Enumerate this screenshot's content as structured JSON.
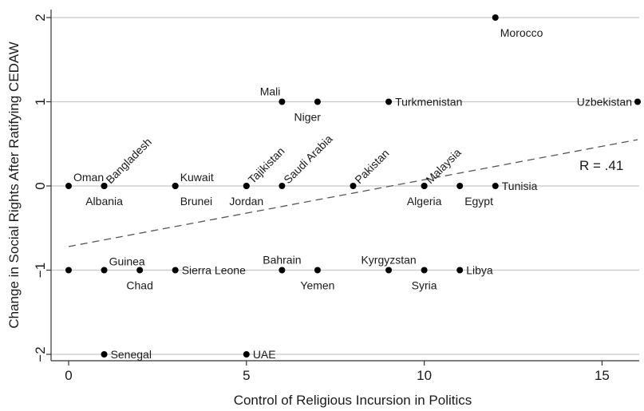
{
  "chart_data": {
    "type": "scatter",
    "xlabel": "Control of Religious Incursion in Politics",
    "ylabel": "Change in Social Rights After Ratifying CEDAW",
    "xlim": [
      0,
      16
    ],
    "ylim": [
      -2,
      2
    ],
    "x_ticks": [
      0,
      5,
      10,
      15
    ],
    "y_ticks": [
      2,
      1,
      0,
      -1,
      -2
    ],
    "y_tick_labels": [
      "2",
      "1",
      "0",
      "−1",
      "−2"
    ],
    "grid": "horizontal",
    "fit_line": {
      "style": "dashed",
      "x": [
        0,
        16
      ],
      "y": [
        -0.72,
        0.55
      ]
    },
    "annotation": "R = .41",
    "colors": {
      "points": "#000000",
      "grid": "#c8c8c8",
      "fit_line": "#555555"
    },
    "points": [
      {
        "label": "Morocco",
        "x": 12,
        "y": 2,
        "pos": "below-right"
      },
      {
        "label": "Mali",
        "x": 6,
        "y": 1,
        "pos": "above-left"
      },
      {
        "label": "Niger",
        "x": 7,
        "y": 1,
        "pos": "below-left"
      },
      {
        "label": "Turkmenistan",
        "x": 9,
        "y": 1,
        "pos": "right"
      },
      {
        "label": "Uzbekistan",
        "x": 16,
        "y": 1,
        "pos": "left"
      },
      {
        "label": "Oman",
        "x": 0,
        "y": 0,
        "pos": "above-right"
      },
      {
        "label": "Albania",
        "x": 1,
        "y": 0,
        "pos": "below"
      },
      {
        "label": "Bangladesh",
        "x": 1,
        "y": 0,
        "pos": "rotated"
      },
      {
        "label": "Kuwait",
        "x": 3,
        "y": 0,
        "pos": "above-right"
      },
      {
        "label": "Brunei",
        "x": 3,
        "y": 0,
        "pos": "below-right"
      },
      {
        "label": "Tajikistan",
        "x": 5,
        "y": 0,
        "pos": "rotated"
      },
      {
        "label": "Jordan",
        "x": 5,
        "y": 0,
        "pos": "below"
      },
      {
        "label": "Saudi Arabia",
        "x": 6,
        "y": 0,
        "pos": "rotated"
      },
      {
        "label": "Pakistan",
        "x": 8,
        "y": 0,
        "pos": "rotated"
      },
      {
        "label": "Malaysia",
        "x": 10,
        "y": 0,
        "pos": "rotated"
      },
      {
        "label": "Algeria",
        "x": 10,
        "y": 0,
        "pos": "below"
      },
      {
        "label": "Egypt",
        "x": 11,
        "y": 0,
        "pos": "below-right"
      },
      {
        "label": "Tunisia",
        "x": 12,
        "y": 0,
        "pos": "right"
      },
      {
        "label": "",
        "x": 0,
        "y": -1,
        "pos": "none"
      },
      {
        "label": "Guinea",
        "x": 1,
        "y": -1,
        "pos": "above-right"
      },
      {
        "label": "Chad",
        "x": 2,
        "y": -1,
        "pos": "below"
      },
      {
        "label": "Sierra Leone",
        "x": 3,
        "y": -1,
        "pos": "right"
      },
      {
        "label": "Bahrain",
        "x": 6,
        "y": -1,
        "pos": "above"
      },
      {
        "label": "Yemen",
        "x": 7,
        "y": -1,
        "pos": "below"
      },
      {
        "label": "Kyrgyzstan",
        "x": 9,
        "y": -1,
        "pos": "above"
      },
      {
        "label": "Syria",
        "x": 10,
        "y": -1,
        "pos": "below"
      },
      {
        "label": "Libya",
        "x": 11,
        "y": -1,
        "pos": "right"
      },
      {
        "label": "Senegal",
        "x": 1,
        "y": -2,
        "pos": "right"
      },
      {
        "label": "UAE",
        "x": 5,
        "y": -2,
        "pos": "right"
      }
    ]
  }
}
